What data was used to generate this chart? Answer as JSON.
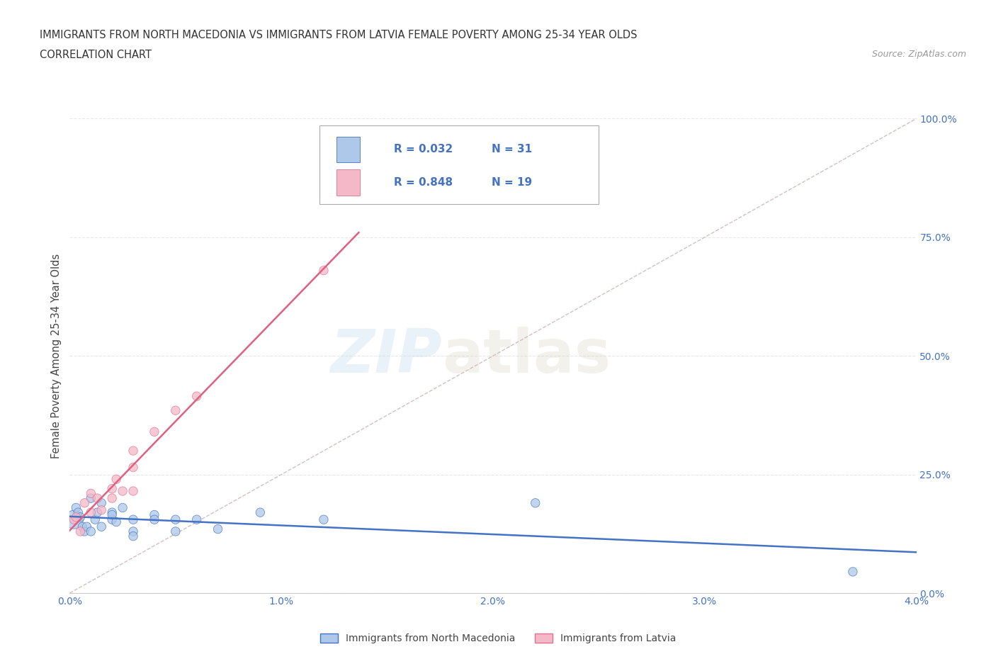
{
  "title_line1": "IMMIGRANTS FROM NORTH MACEDONIA VS IMMIGRANTS FROM LATVIA FEMALE POVERTY AMONG 25-34 YEAR OLDS",
  "title_line2": "CORRELATION CHART",
  "source_text": "Source: ZipAtlas.com",
  "ylabel": "Female Poverty Among 25-34 Year Olds",
  "xlim": [
    0.0,
    0.04
  ],
  "ylim": [
    0.0,
    1.0
  ],
  "xticks": [
    0.0,
    0.01,
    0.02,
    0.03,
    0.04
  ],
  "xtick_labels": [
    "0.0%",
    "1.0%",
    "2.0%",
    "3.0%",
    "4.0%"
  ],
  "yticks": [
    0.0,
    0.25,
    0.5,
    0.75,
    1.0
  ],
  "ytick_labels": [
    "0.0%",
    "25.0%",
    "50.0%",
    "75.0%",
    "100.0%"
  ],
  "color_nm": "#adc8e8",
  "color_lv": "#f5b8c8",
  "edge_nm": "#4472c4",
  "edge_lv": "#e07090",
  "line_nm": "#4472c4",
  "line_lv": "#e06080",
  "diag_color": "#c8b0b0",
  "tick_color": "#4472c4",
  "R_nm": 0.032,
  "N_nm": 31,
  "R_lv": 0.848,
  "N_lv": 19,
  "nm_x": [
    0.0002,
    0.0003,
    0.0004,
    0.0005,
    0.0006,
    0.0007,
    0.0008,
    0.001,
    0.001,
    0.0012,
    0.0013,
    0.0015,
    0.0015,
    0.002,
    0.002,
    0.002,
    0.0022,
    0.0025,
    0.003,
    0.003,
    0.003,
    0.004,
    0.004,
    0.005,
    0.005,
    0.006,
    0.007,
    0.009,
    0.012,
    0.022,
    0.037
  ],
  "nm_y": [
    0.155,
    0.18,
    0.17,
    0.16,
    0.14,
    0.13,
    0.14,
    0.2,
    0.13,
    0.155,
    0.17,
    0.19,
    0.14,
    0.155,
    0.17,
    0.165,
    0.15,
    0.18,
    0.155,
    0.13,
    0.12,
    0.165,
    0.155,
    0.155,
    0.13,
    0.155,
    0.135,
    0.17,
    0.155,
    0.19,
    0.045
  ],
  "nm_size": [
    350,
    80,
    80,
    80,
    80,
    80,
    80,
    80,
    80,
    80,
    80,
    80,
    80,
    80,
    80,
    80,
    80,
    80,
    80,
    80,
    80,
    80,
    80,
    80,
    80,
    80,
    80,
    80,
    80,
    80,
    80
  ],
  "lv_x": [
    0.0002,
    0.0003,
    0.0005,
    0.0007,
    0.001,
    0.001,
    0.0013,
    0.0015,
    0.002,
    0.002,
    0.0022,
    0.0025,
    0.003,
    0.003,
    0.003,
    0.004,
    0.005,
    0.006,
    0.012
  ],
  "lv_y": [
    0.155,
    0.16,
    0.13,
    0.19,
    0.21,
    0.17,
    0.2,
    0.175,
    0.22,
    0.2,
    0.24,
    0.215,
    0.265,
    0.3,
    0.215,
    0.34,
    0.385,
    0.415,
    0.68
  ],
  "lv_size": [
    80,
    80,
    80,
    80,
    80,
    80,
    80,
    80,
    80,
    80,
    80,
    80,
    80,
    80,
    80,
    80,
    80,
    80,
    80
  ],
  "legend_label_nm": "Immigrants from North Macedonia",
  "legend_label_lv": "Immigrants from Latvia",
  "watermark_zip": "ZIP",
  "watermark_atlas": "atlas",
  "bg_color": "#ffffff",
  "grid_color": "#e8e8e8"
}
